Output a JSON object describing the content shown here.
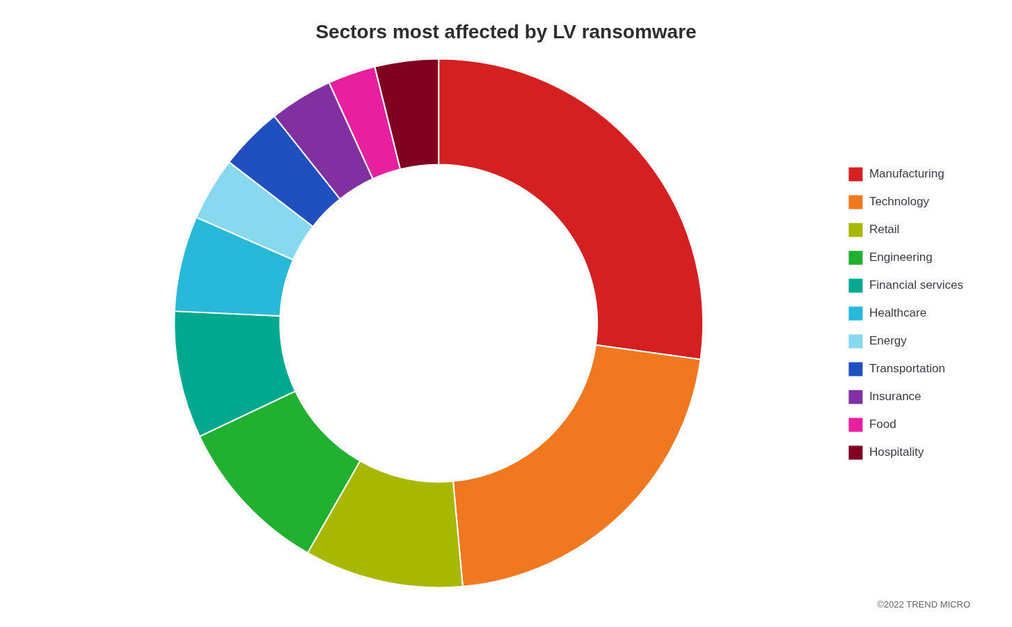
{
  "chart_data": {
    "type": "doughnut",
    "title": "Sectors most affected by LV ransomware",
    "categories": [
      "Manufacturing",
      "Technology",
      "Retail",
      "Engineering",
      "Financial services",
      "Healthcare",
      "Energy",
      "Transportation",
      "Insurance",
      "Food",
      "Hospitality"
    ],
    "values": [
      28,
      22,
      10,
      10,
      8,
      6,
      4,
      4,
      4,
      3,
      4
    ],
    "colors": [
      "#d42020",
      "#f07820",
      "#a8b800",
      "#22b030",
      "#00a890",
      "#28b8d8",
      "#88d8f0",
      "#2050c0",
      "#8030a0",
      "#e820a0",
      "#800020"
    ],
    "legend": "right",
    "annotations": [
      "©2022 TREND MICRO"
    ]
  }
}
